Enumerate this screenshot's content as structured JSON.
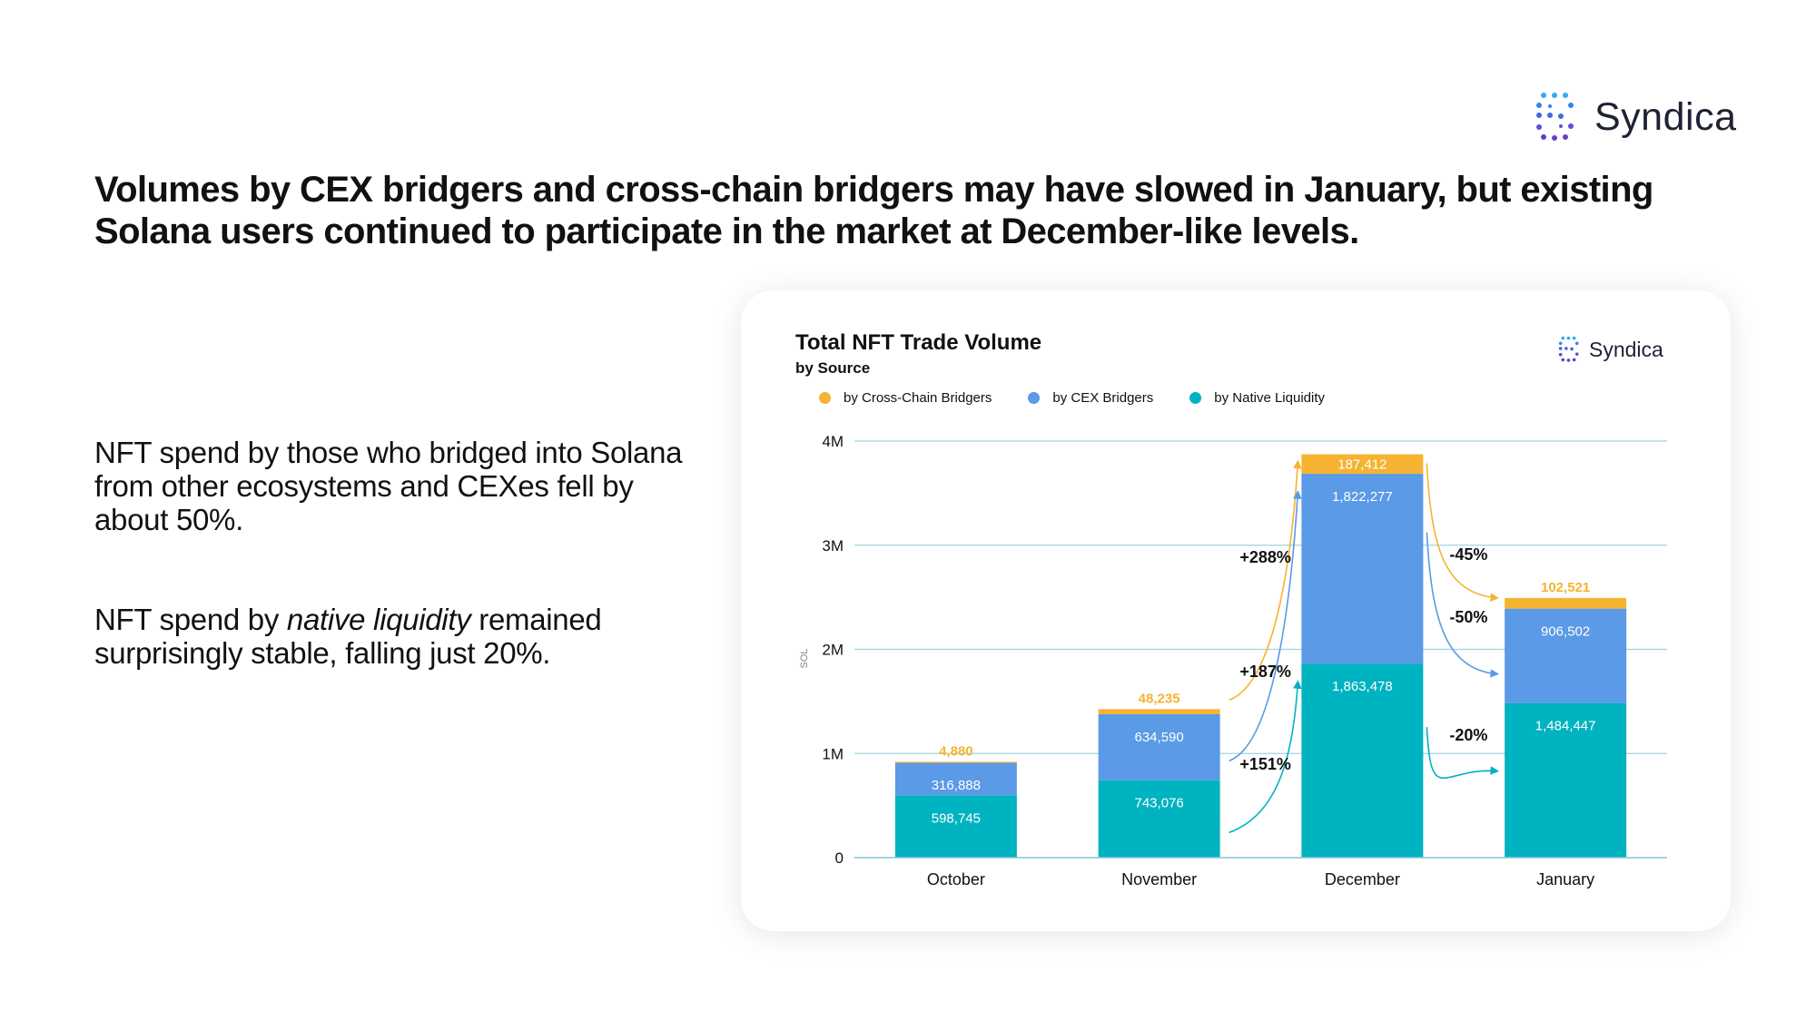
{
  "brand": {
    "name": "Syndica",
    "accent": "#2d6be0"
  },
  "headline": "Volumes by CEX bridgers and cross-chain bridgers may have slowed in January, but existing Solana users continued to participate in the market at December-like levels.",
  "paragraphs": {
    "p1": "NFT spend by those who bridged into Solana from other ecosystems and CEXes fell by about 50%.",
    "p2_before": "NFT spend by ",
    "p2_italic": "native liquidity",
    "p2_after": " remained surprisingly stable, falling just 20%."
  },
  "chart_data": {
    "type": "bar",
    "stacked": true,
    "title": "Total NFT Trade Volume",
    "subtitle": "by Source",
    "xlabel": "",
    "ylabel": "SOL",
    "ylim": [
      0,
      4000000
    ],
    "yticks": [
      0,
      1000000,
      2000000,
      3000000,
      4000000
    ],
    "ytick_labels": [
      "0",
      "1M",
      "2M",
      "3M",
      "4M"
    ],
    "grid": true,
    "legend_position": "top-left",
    "categories": [
      "October",
      "November",
      "December",
      "January"
    ],
    "series": [
      {
        "name": "by Native Liquidity",
        "color": "#00b3c0",
        "values": [
          598745,
          743076,
          1863478,
          1484447
        ],
        "labels": [
          "598,745",
          "743,076",
          "1,863,478",
          "1,484,447"
        ]
      },
      {
        "name": "by CEX Bridgers",
        "color": "#5a9ae6",
        "values": [
          316888,
          634590,
          1822277,
          906502
        ],
        "labels": [
          "316,888",
          "634,590",
          "1,822,277",
          "906,502"
        ]
      },
      {
        "name": "by Cross-Chain Bridgers",
        "color": "#f5b331",
        "values": [
          4880,
          48235,
          187412,
          102521
        ],
        "labels": [
          "4,880",
          "48,235",
          "187,412",
          "102,521"
        ]
      }
    ],
    "annotations": [
      {
        "text": "+288%",
        "series": "by Cross-Chain Bridgers",
        "from": "November",
        "to": "December"
      },
      {
        "text": "+187%",
        "series": "by CEX Bridgers",
        "from": "November",
        "to": "December"
      },
      {
        "text": "+151%",
        "series": "by Native Liquidity",
        "from": "November",
        "to": "December"
      },
      {
        "text": "-45%",
        "series": "by Cross-Chain Bridgers",
        "from": "December",
        "to": "January"
      },
      {
        "text": "-50%",
        "series": "by CEX Bridgers",
        "from": "December",
        "to": "January"
      },
      {
        "text": "-20%",
        "series": "by Native Liquidity",
        "from": "December",
        "to": "January"
      }
    ]
  }
}
